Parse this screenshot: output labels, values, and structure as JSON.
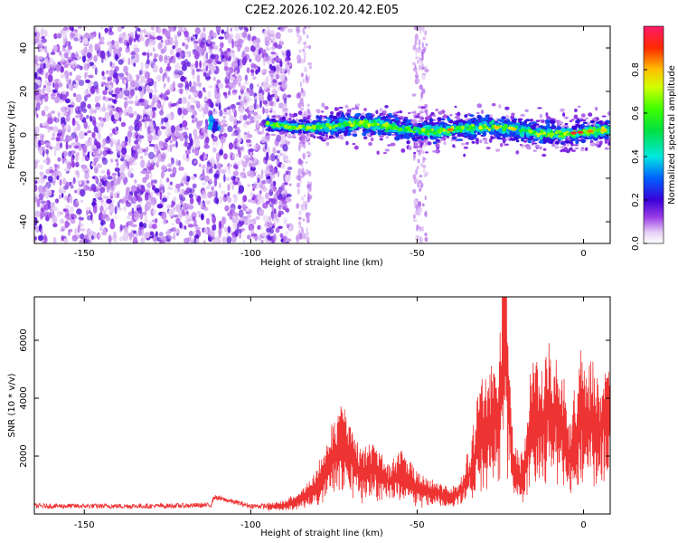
{
  "title": "C2E2.2026.102.20.42.E05",
  "chart_data": [
    {
      "type": "heatmap",
      "title": "C2E2.2026.102.20.42.E05",
      "xlabel": "Height of straight line (km)",
      "ylabel": "Frequency (Hz)",
      "xlim": [
        -165,
        8
      ],
      "ylim": [
        -50,
        50
      ],
      "x_ticks": [
        -150,
        -100,
        -50,
        0
      ],
      "x_tick_labels": [
        "-150",
        "-100",
        "-50",
        "0"
      ],
      "y_ticks": [
        -40,
        -20,
        0,
        20,
        40
      ],
      "y_tick_labels": [
        "-40",
        "-20",
        "0",
        "20",
        "40"
      ],
      "colorbar": {
        "label": "Normalized spectral amplitude",
        "range": [
          0,
          1
        ],
        "ticks": [
          0,
          0.2,
          0.4,
          0.6,
          0.8
        ],
        "tick_labels": [
          "0.0",
          "0.2",
          "0.4",
          "0.6",
          "0.8"
        ]
      },
      "features": [
        {
          "name": "noise-region",
          "x_range": [
            -165,
            -88
          ],
          "y_range": [
            -50,
            50
          ],
          "amplitude": 0.1
        },
        {
          "name": "signal-band",
          "x_range": [
            -95,
            8
          ],
          "center_freq_start": 5,
          "center_freq_end": 1,
          "amplitude_range": [
            0.2,
            1.0
          ]
        }
      ]
    },
    {
      "type": "line",
      "xlabel": "Height of straight line (km)",
      "ylabel": "SNR (10 * v/v)",
      "xlim": [
        -165,
        8
      ],
      "ylim": [
        0,
        7500
      ],
      "x_ticks": [
        -150,
        -100,
        -50,
        0
      ],
      "x_tick_labels": [
        "-150",
        "-100",
        "-50",
        "0"
      ],
      "y_ticks": [
        2000,
        4000,
        6000
      ],
      "y_tick_labels": [
        "2000",
        "4000",
        "6000"
      ],
      "color": "#ee3333",
      "series": [
        {
          "name": "SNR",
          "x": [
            -165,
            -150,
            -130,
            -112,
            -111,
            -100,
            -95,
            -90,
            -87,
            -85,
            -82,
            -80,
            -78,
            -76,
            -74,
            -72,
            -70,
            -68,
            -66,
            -64,
            -62,
            -60,
            -58,
            -56,
            -54,
            -52,
            -50,
            -48,
            -46,
            -44,
            -42,
            -40,
            -38,
            -36,
            -34,
            -32,
            -31,
            -30,
            -29,
            -28,
            -27,
            -26,
            -25,
            -24,
            -23.5,
            -23,
            -22,
            -21,
            -20,
            -19,
            -18,
            -17,
            -16,
            -15,
            -14,
            -13,
            -12,
            -11,
            -10,
            -9,
            -8,
            -7,
            -6,
            -5,
            -4,
            -3,
            -2,
            -1,
            0,
            1,
            2,
            3,
            4,
            5,
            6,
            7,
            8
          ],
          "values": [
            250,
            250,
            250,
            280,
            560,
            250,
            250,
            330,
            450,
            620,
            780,
            1100,
            1550,
            1950,
            2450,
            2650,
            2200,
            1750,
            1550,
            1650,
            1600,
            1350,
            1250,
            1450,
            1550,
            1200,
            1000,
            900,
            850,
            800,
            650,
            600,
            700,
            1100,
            1700,
            2600,
            3200,
            3100,
            3250,
            3600,
            3700,
            3700,
            4150,
            6500,
            7300,
            5200,
            3300,
            1600,
            1900,
            1350,
            1700,
            2250,
            3600,
            3700,
            3550,
            3400,
            3350,
            4000,
            3950,
            3450,
            3600,
            3550,
            3550,
            2600,
            2050,
            2750,
            3050,
            3850,
            3700,
            3350,
            3550,
            3450,
            3600,
            3400,
            3500,
            3650,
            3900
          ]
        }
      ]
    }
  ]
}
